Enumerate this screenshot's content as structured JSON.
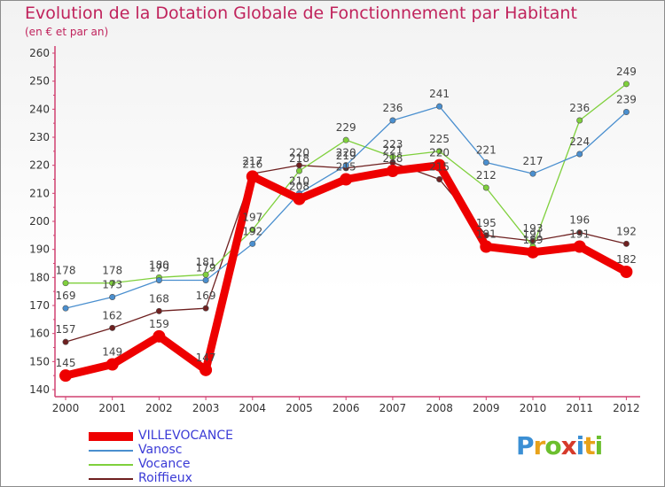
{
  "header": {
    "title": "Evolution de la Dotation Globale de Fonctionnement par Habitant",
    "subtitle": "(en € et par an)"
  },
  "chart_data": {
    "type": "line",
    "title": "Evolution de la Dotation Globale de Fonctionnement par Habitant",
    "subtitle": "(en € et par an)",
    "xlabel": "",
    "ylabel": "",
    "categories": [
      "2000",
      "2001",
      "2002",
      "2003",
      "2004",
      "2005",
      "2006",
      "2007",
      "2008",
      "2009",
      "2010",
      "2011",
      "2012"
    ],
    "ylim": [
      140,
      260
    ],
    "yticks": [
      140,
      150,
      160,
      170,
      180,
      190,
      200,
      210,
      220,
      230,
      240,
      250,
      260
    ],
    "grid": false,
    "series": [
      {
        "name": "VILLEVOCANCE",
        "color": "#ee0000",
        "values": [
          145,
          149,
          159,
          147,
          216,
          208,
          215,
          218,
          220,
          191,
          189,
          191,
          182
        ]
      },
      {
        "name": "Vanosc",
        "color": "#4a8fcf",
        "values": [
          169,
          173,
          179,
          179,
          192,
          210,
          220,
          236,
          241,
          221,
          217,
          224,
          239
        ]
      },
      {
        "name": "Vocance",
        "color": "#7fd03c",
        "values": [
          178,
          178,
          180,
          181,
          197,
          218,
          229,
          223,
          225,
          212,
          191,
          236,
          249
        ]
      },
      {
        "name": "Roiffieux",
        "color": "#6e2020",
        "values": [
          157,
          162,
          168,
          169,
          217,
          220,
          219,
          221,
          215,
          195,
          193,
          196,
          192
        ]
      }
    ]
  },
  "legend": {
    "items": [
      {
        "label": "VILLEVOCANCE",
        "color": "#ee0000"
      },
      {
        "label": "Vanosc",
        "color": "#4a8fcf"
      },
      {
        "label": "Vocance",
        "color": "#7fd03c"
      },
      {
        "label": "Roiffieux",
        "color": "#6e2020"
      }
    ]
  },
  "logo": {
    "text": "Proxiti"
  }
}
